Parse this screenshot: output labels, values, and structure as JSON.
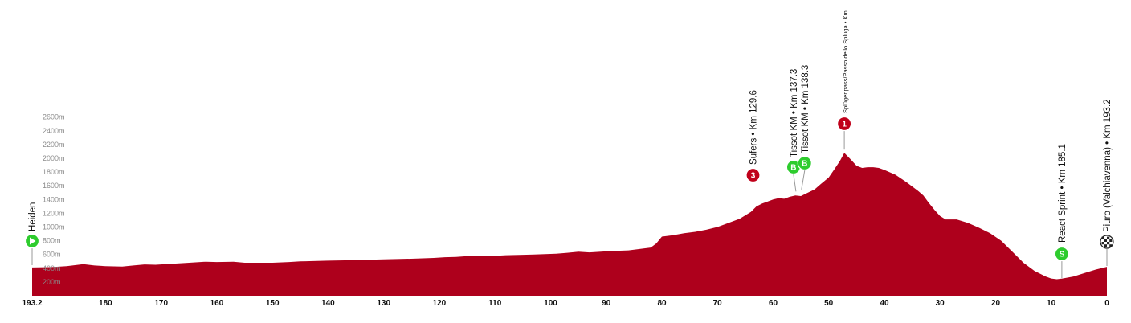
{
  "chart_data": {
    "type": "area",
    "title": "",
    "xlabel": "",
    "ylabel": "",
    "x_reversed": true,
    "xlim": [
      193.2,
      0
    ],
    "ylim": [
      0,
      2700
    ],
    "x_ticks": [
      {
        "value": 193.2,
        "label": "193.2"
      },
      {
        "value": 180,
        "label": "180"
      },
      {
        "value": 170,
        "label": "170"
      },
      {
        "value": 160,
        "label": "160"
      },
      {
        "value": 150,
        "label": "150"
      },
      {
        "value": 140,
        "label": "140"
      },
      {
        "value": 130,
        "label": "130"
      },
      {
        "value": 120,
        "label": "120"
      },
      {
        "value": 110,
        "label": "110"
      },
      {
        "value": 100,
        "label": "100"
      },
      {
        "value": 90,
        "label": "90"
      },
      {
        "value": 80,
        "label": "80"
      },
      {
        "value": 70,
        "label": "70"
      },
      {
        "value": 60,
        "label": "60"
      },
      {
        "value": 50,
        "label": "50"
      },
      {
        "value": 40,
        "label": "40"
      },
      {
        "value": 30,
        "label": "30"
      },
      {
        "value": 20,
        "label": "20"
      },
      {
        "value": 10,
        "label": "10"
      },
      {
        "value": 0,
        "label": "0"
      }
    ],
    "y_ticks": [
      {
        "value": 200,
        "label": "200m"
      },
      {
        "value": 400,
        "label": "400m"
      },
      {
        "value": 600,
        "label": "600m"
      },
      {
        "value": 800,
        "label": "800m"
      },
      {
        "value": 1000,
        "label": "1000m"
      },
      {
        "value": 1200,
        "label": "1200m"
      },
      {
        "value": 1400,
        "label": "1400m"
      },
      {
        "value": 1600,
        "label": "1600m"
      },
      {
        "value": 1800,
        "label": "1800m"
      },
      {
        "value": 2000,
        "label": "2000m"
      },
      {
        "value": 2200,
        "label": "2200m"
      },
      {
        "value": 2400,
        "label": "2400m"
      },
      {
        "value": 2600,
        "label": "2600m"
      }
    ],
    "series": [
      {
        "name": "",
        "color": "#ae001c",
        "points": [
          [
            193.2,
            410
          ],
          [
            190,
            415
          ],
          [
            187,
            430
          ],
          [
            184,
            460
          ],
          [
            182,
            440
          ],
          [
            180,
            430
          ],
          [
            177,
            425
          ],
          [
            175,
            440
          ],
          [
            173,
            455
          ],
          [
            171,
            450
          ],
          [
            168,
            465
          ],
          [
            165,
            480
          ],
          [
            162,
            495
          ],
          [
            160,
            490
          ],
          [
            157,
            495
          ],
          [
            155,
            480
          ],
          [
            150,
            480
          ],
          [
            147,
            490
          ],
          [
            145,
            500
          ],
          [
            142,
            505
          ],
          [
            140,
            510
          ],
          [
            137,
            515
          ],
          [
            134,
            520
          ],
          [
            132,
            525
          ],
          [
            130,
            530
          ],
          [
            127,
            535
          ],
          [
            124,
            540
          ],
          [
            121,
            550
          ],
          [
            119,
            560
          ],
          [
            117,
            565
          ],
          [
            115,
            575
          ],
          [
            113,
            580
          ],
          [
            110,
            580
          ],
          [
            108,
            590
          ],
          [
            105,
            595
          ],
          [
            103,
            600
          ],
          [
            101,
            605
          ],
          [
            99,
            610
          ],
          [
            97,
            625
          ],
          [
            95,
            640
          ],
          [
            93,
            630
          ],
          [
            91,
            640
          ],
          [
            89,
            650
          ],
          [
            86,
            660
          ],
          [
            84,
            680
          ],
          [
            82,
            700
          ],
          [
            81,
            760
          ],
          [
            80,
            860
          ],
          [
            78,
            880
          ],
          [
            76,
            910
          ],
          [
            74,
            930
          ],
          [
            72,
            960
          ],
          [
            70,
            1000
          ],
          [
            68,
            1060
          ],
          [
            66,
            1120
          ],
          [
            64,
            1220
          ],
          [
            63,
            1300
          ],
          [
            62,
            1340
          ],
          [
            61,
            1370
          ],
          [
            60,
            1400
          ],
          [
            59,
            1420
          ],
          [
            58,
            1410
          ],
          [
            57,
            1440
          ],
          [
            56,
            1460
          ],
          [
            55,
            1450
          ],
          [
            54,
            1490
          ],
          [
            53,
            1530
          ],
          [
            52.5,
            1550
          ],
          [
            51.5,
            1620
          ],
          [
            50,
            1720
          ],
          [
            49,
            1840
          ],
          [
            48,
            1960
          ],
          [
            47.2,
            2080
          ],
          [
            46,
            1980
          ],
          [
            45,
            1890
          ],
          [
            44,
            1860
          ],
          [
            43,
            1870
          ],
          [
            42,
            1870
          ],
          [
            41,
            1860
          ],
          [
            40,
            1830
          ],
          [
            38,
            1760
          ],
          [
            36,
            1650
          ],
          [
            34,
            1530
          ],
          [
            33,
            1460
          ],
          [
            32,
            1350
          ],
          [
            31,
            1250
          ],
          [
            30,
            1160
          ],
          [
            29,
            1110
          ],
          [
            27,
            1110
          ],
          [
            25,
            1060
          ],
          [
            23,
            990
          ],
          [
            21,
            910
          ],
          [
            19,
            800
          ],
          [
            17,
            640
          ],
          [
            15,
            480
          ],
          [
            13,
            360
          ],
          [
            11,
            280
          ],
          [
            10,
            250
          ],
          [
            9,
            240
          ],
          [
            8,
            250
          ],
          [
            6,
            280
          ],
          [
            4,
            330
          ],
          [
            2,
            380
          ],
          [
            0,
            420
          ]
        ]
      }
    ],
    "markers": [
      {
        "km": 193.2,
        "elevation": 410,
        "label": "Heiden",
        "badge": "",
        "badge_kind": "start",
        "color": "#2ecc2e"
      },
      {
        "km": 63.6,
        "elevation": 1310,
        "label": "Sufers • Km 129.6",
        "badge": "3",
        "badge_kind": "climb",
        "color": "#c0001a"
      },
      {
        "km": 55.9,
        "elevation": 1470,
        "label": "Tissot KM • Km 137.3",
        "badge": "B",
        "badge_kind": "bonus",
        "color": "#2ecc2e"
      },
      {
        "km": 54.9,
        "elevation": 1500,
        "label": "Tissot KM • Km 138.3",
        "badge": "B",
        "badge_kind": "bonus",
        "color": "#2ecc2e"
      },
      {
        "km": 47.2,
        "elevation": 2080,
        "label": "Splügenpass/Passo dello Spluga • Km",
        "badge": "1",
        "badge_kind": "climb",
        "color": "#c0001a"
      },
      {
        "km": 8.1,
        "elevation": 250,
        "label": "React Sprint • Km 185.1",
        "badge": "S",
        "badge_kind": "sprint",
        "color": "#2ecc2e"
      },
      {
        "km": 0,
        "elevation": 420,
        "label": "Piuro (Valchiavenna) • Km 193.2",
        "badge": "",
        "badge_kind": "finish",
        "color": "#222222"
      }
    ]
  }
}
